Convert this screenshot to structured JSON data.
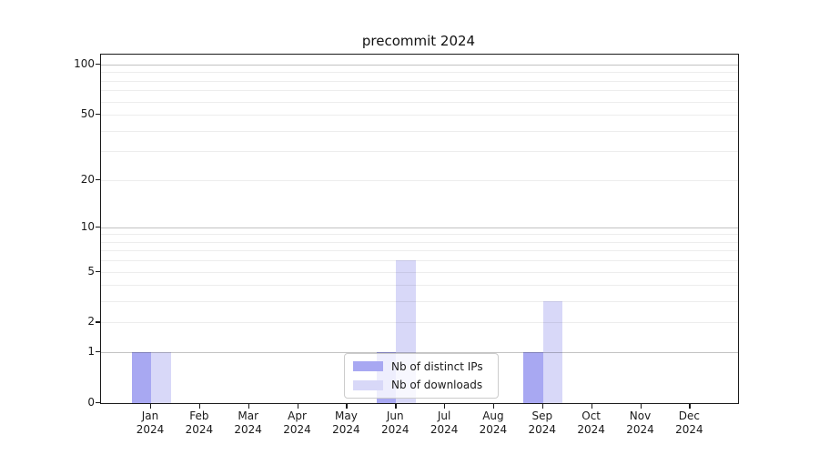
{
  "chart_data": {
    "type": "bar",
    "title": "precommit 2024",
    "categories": [
      "Jan 2024",
      "Feb 2024",
      "Mar 2024",
      "Apr 2024",
      "May 2024",
      "Jun 2024",
      "Jul 2024",
      "Aug 2024",
      "Sep 2024",
      "Oct 2024",
      "Nov 2024",
      "Dec 2024"
    ],
    "series": [
      {
        "name": "Nb of distinct IPs",
        "color": "#a8a8f2",
        "values": [
          1,
          0,
          0,
          0,
          0,
          1,
          0,
          0,
          1,
          0,
          0,
          0
        ]
      },
      {
        "name": "Nb of downloads",
        "color": "#d8d8f8",
        "values": [
          1,
          0,
          0,
          0,
          0,
          6,
          0,
          0,
          3,
          0,
          0,
          0
        ]
      }
    ],
    "yscale": "log1p",
    "ylim": [
      0,
      115
    ],
    "yticks": [
      0,
      1,
      2,
      5,
      10,
      20,
      50,
      100
    ],
    "gridline_values": [
      1,
      2,
      3,
      4,
      5,
      6,
      7,
      8,
      9,
      10,
      20,
      30,
      40,
      50,
      60,
      70,
      80,
      90,
      100
    ],
    "major_gridline_values": [
      1,
      10,
      100
    ],
    "grid": true,
    "legend_position": "lower center",
    "axis_color": "#1a1a1a"
  }
}
